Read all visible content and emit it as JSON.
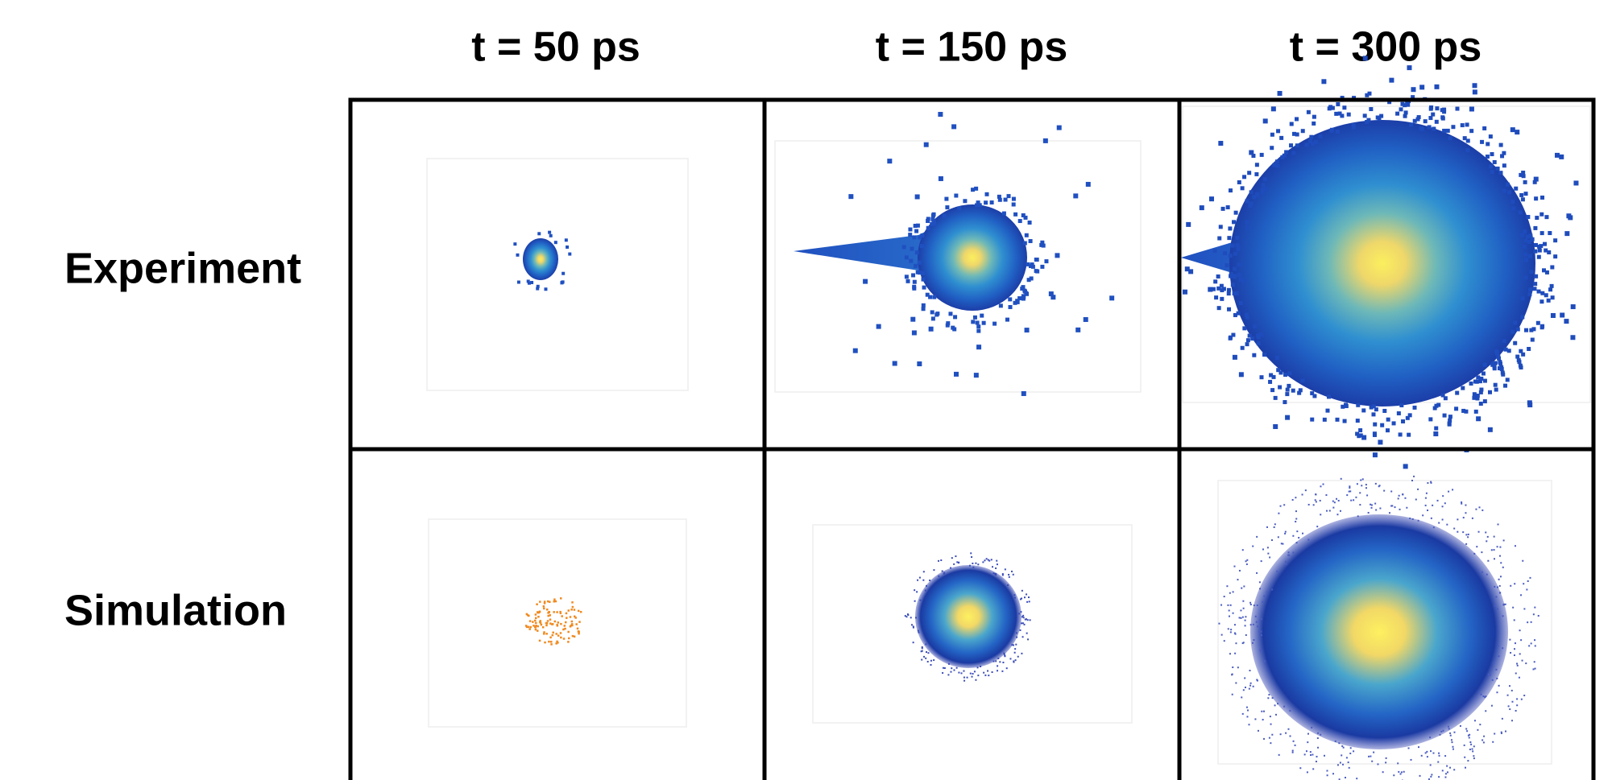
{
  "columns": [
    "t = 50 ps",
    "t = 150 ps",
    "t = 300 ps"
  ],
  "rows": [
    "Experiment",
    "Simulation"
  ]
}
